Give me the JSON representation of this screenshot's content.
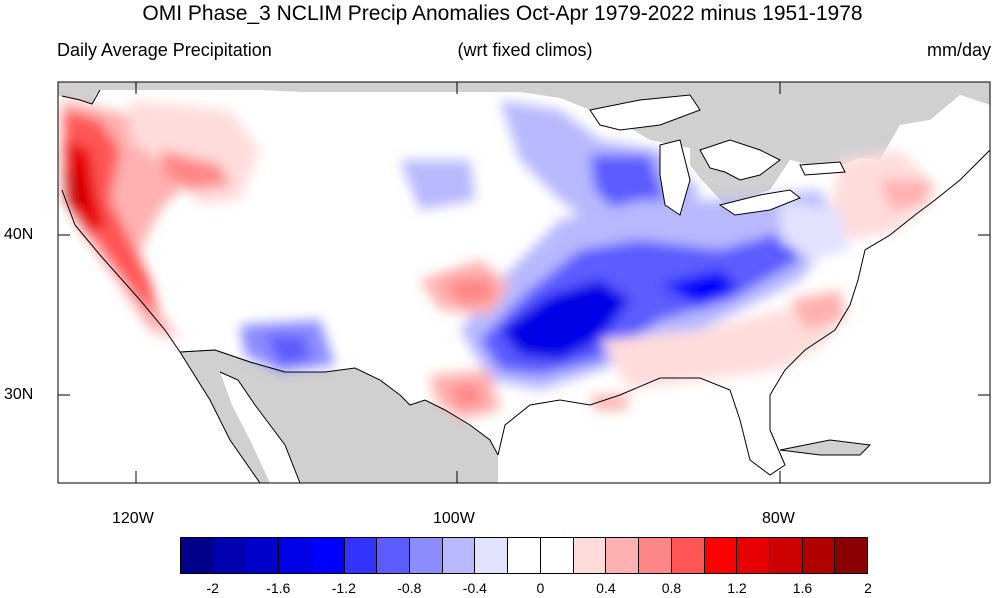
{
  "title": "OMI Phase_3 NCLIM Precip Anomalies Oct-Apr 1979-2022 minus 1951-1978",
  "subtitle_left": "Daily Average Precipitation",
  "subtitle_center": "(wrt fixed climos)",
  "subtitle_right": "mm/day",
  "lat_labels": [
    "40N",
    "30N"
  ],
  "lon_labels": [
    "120W",
    "100W",
    "80W"
  ],
  "colorbar": {
    "colors": [
      "#00008b",
      "#0000b0",
      "#0000cd",
      "#0000e6",
      "#0000ff",
      "#3333ff",
      "#5c5cff",
      "#8c8cff",
      "#b8b8ff",
      "#e2e2ff",
      "#ffffff",
      "#ffffff",
      "#ffdcdc",
      "#ffb0b0",
      "#ff8686",
      "#ff5555",
      "#ff0000",
      "#e60000",
      "#cd0000",
      "#b00000",
      "#8b0000"
    ],
    "labels": [
      "-2",
      "-1.6",
      "-1.2",
      "-0.8",
      "-0.4",
      "0",
      "0.4",
      "0.8",
      "1.2",
      "1.6",
      "2"
    ]
  },
  "colors": {
    "land_missing": "#d0d0d0",
    "ocean": "#ffffff",
    "coastline": "#000000"
  },
  "regions": [
    "Pacific Coast / Sierra Nevada (strong positive)",
    "Pacific Northwest interior (positive)",
    "Southwest Arizona / New Mexico (negative)",
    "Central Plains to Mississippi Valley (strong negative)",
    "Upper Midwest / Great Lakes (negative)",
    "Ohio Valley (negative)",
    "Colorado / Kansas (positive)",
    "Central Texas (positive)",
    "Southeast / Atlantic coast (weak positive)",
    "Northeast (weak positive)"
  ]
}
